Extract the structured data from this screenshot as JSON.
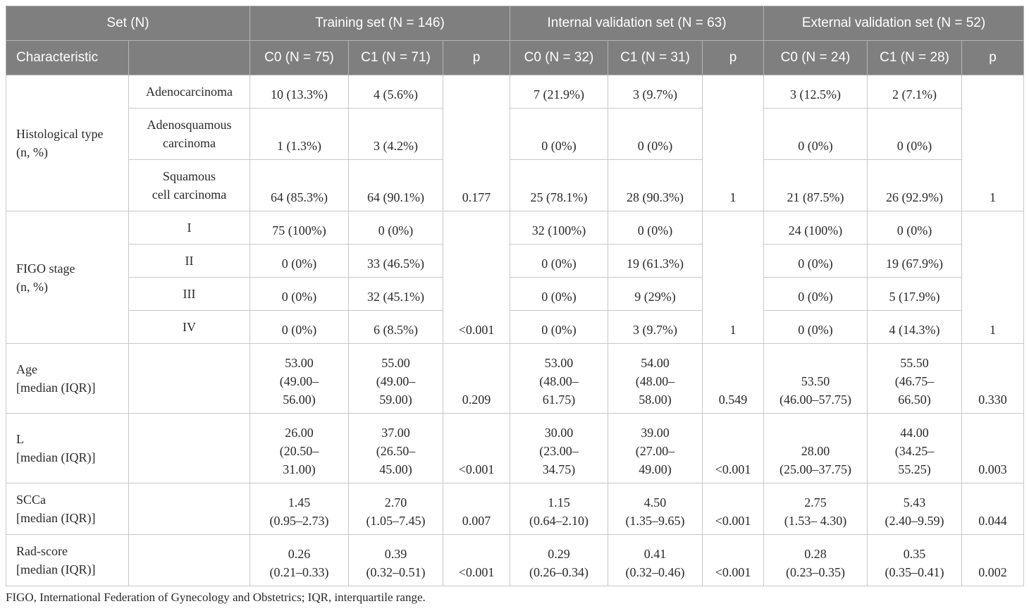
{
  "header": {
    "set_label": "Set (N)",
    "training": "Training set (N = 146)",
    "internal": "Internal validation set (N = 63)",
    "external": "External validation set (N = 52)",
    "characteristic": "Characteristic",
    "sub_empty": "",
    "train_c0": "C0 (N = 75)",
    "train_c1": "C1 (N = 71)",
    "train_p": "p",
    "int_c0": "C0 (N = 32)",
    "int_c1": "C1 (N = 31)",
    "int_p": "p",
    "ext_c0": "C0 (N = 24)",
    "ext_c1": "C1 (N = 28)",
    "ext_p": "p"
  },
  "histological": {
    "label": "Histological type\n(n, %)",
    "p_train": "0.177",
    "p_int": "1",
    "p_ext": "1",
    "rows": [
      {
        "sub": "Adenocarcinoma",
        "train_c0": "10 (13.3%)",
        "train_c1": "4 (5.6%)",
        "int_c0": "7 (21.9%)",
        "int_c1": "3 (9.7%)",
        "ext_c0": "3 (12.5%)",
        "ext_c1": "2 (7.1%)"
      },
      {
        "sub": "Adenosquamous\ncarcinoma",
        "train_c0": "1 (1.3%)",
        "train_c1": "3 (4.2%)",
        "int_c0": "0 (0%)",
        "int_c1": "0 (0%)",
        "ext_c0": "0 (0%)",
        "ext_c1": "0 (0%)"
      },
      {
        "sub": "Squamous\ncell carcinoma",
        "train_c0": "64 (85.3%)",
        "train_c1": "64 (90.1%)",
        "int_c0": "25 (78.1%)",
        "int_c1": "28 (90.3%)",
        "ext_c0": "21 (87.5%)",
        "ext_c1": "26 (92.9%)"
      }
    ]
  },
  "figo": {
    "label": "FIGO stage\n(n, %)",
    "p_train": "<0.001",
    "p_int": "1",
    "p_ext": "1",
    "rows": [
      {
        "sub": "I",
        "train_c0": "75 (100%)",
        "train_c1": "0 (0%)",
        "int_c0": "32 (100%)",
        "int_c1": "0 (0%)",
        "ext_c0": "24 (100%)",
        "ext_c1": "0 (0%)"
      },
      {
        "sub": "II",
        "train_c0": "0 (0%)",
        "train_c1": "33 (46.5%)",
        "int_c0": "0 (0%)",
        "int_c1": "19 (61.3%)",
        "ext_c0": "0 (0%)",
        "ext_c1": "19 (67.9%)"
      },
      {
        "sub": "III",
        "train_c0": "0 (0%)",
        "train_c1": "32 (45.1%)",
        "int_c0": "0 (0%)",
        "int_c1": "9 (29%)",
        "ext_c0": "0 (0%)",
        "ext_c1": "5 (17.9%)"
      },
      {
        "sub": "IV",
        "train_c0": "0 (0%)",
        "train_c1": "6 (8.5%)",
        "int_c0": "0 (0%)",
        "int_c1": "3 (9.7%)",
        "ext_c0": "0 (0%)",
        "ext_c1": "4 (14.3%)"
      }
    ]
  },
  "age": {
    "label": "Age\n[median (IQR)]",
    "train_c0": "53.00\n(49.00–\n56.00)",
    "train_c1": "55.00\n(49.00–\n59.00)",
    "p_train": "0.209",
    "int_c0": "53.00\n(48.00–\n61.75)",
    "int_c1": "54.00\n(48.00–\n58.00)",
    "p_int": "0.549",
    "ext_c0": "53.50\n(46.00–57.75)",
    "ext_c1": "55.50\n(46.75–\n66.50)",
    "p_ext": "0.330"
  },
  "l": {
    "label": "L\n[median (IQR)]",
    "train_c0": "26.00\n(20.50–\n31.00)",
    "train_c1": "37.00\n(26.50–\n45.00)",
    "p_train": "<0.001",
    "int_c0": "30.00\n(23.00–\n34.75)",
    "int_c1": "39.00\n(27.00–\n49.00)",
    "p_int": "<0.001",
    "ext_c0": "28.00\n(25.00–37.75)",
    "ext_c1": "44.00\n(34.25–\n55.25)",
    "p_ext": "0.003"
  },
  "scca": {
    "label": "SCCa\n[median (IQR)]",
    "train_c0": "1.45\n(0.95–2.73)",
    "train_c1": "2.70\n(1.05–7.45)",
    "p_train": "0.007",
    "int_c0": "1.15\n(0.64–2.10)",
    "int_c1": "4.50\n(1.35–9.65)",
    "p_int": "<0.001",
    "ext_c0": "2.75\n(1.53– 4.30)",
    "ext_c1": "5.43\n(2.40–9.59)",
    "p_ext": "0.044"
  },
  "rad": {
    "label": "Rad-score\n[median (IQR)]",
    "train_c0": "0.26\n(0.21–0.33)",
    "train_c1": "0.39\n(0.32–0.51)",
    "p_train": "<0.001",
    "int_c0": "0.29\n(0.26–0.34)",
    "int_c1": "0.41\n(0.32–0.46)",
    "p_int": "<0.001",
    "ext_c0": "0.28\n(0.23–0.35)",
    "ext_c1": "0.35\n(0.35–0.41)",
    "p_ext": "0.002"
  },
  "footnote": "FIGO, International Federation of Gynecology and Obstetrics; IQR, interquartile range."
}
